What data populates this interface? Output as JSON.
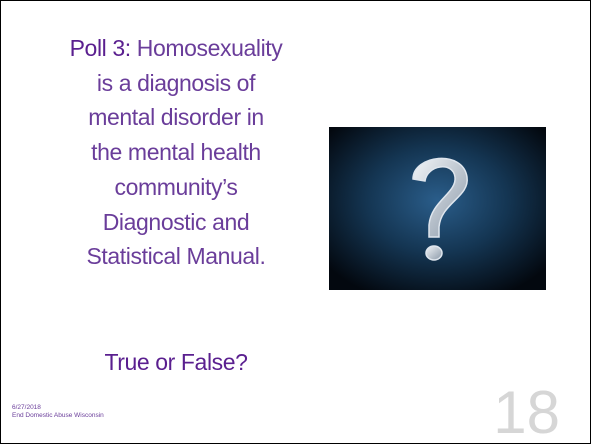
{
  "slide": {
    "poll_label": "Poll 3:",
    "question_lines": [
      "Homosexuality",
      "is a diagnosis of",
      "mental disorder in",
      "the mental health",
      "community’s",
      "Diagnostic and",
      "Statistical Manual."
    ],
    "prompt": "True or False?",
    "footer": {
      "date": "6/27/2018",
      "organization": "End Domestic Abuse Wisconsin"
    },
    "page_number": "18"
  }
}
